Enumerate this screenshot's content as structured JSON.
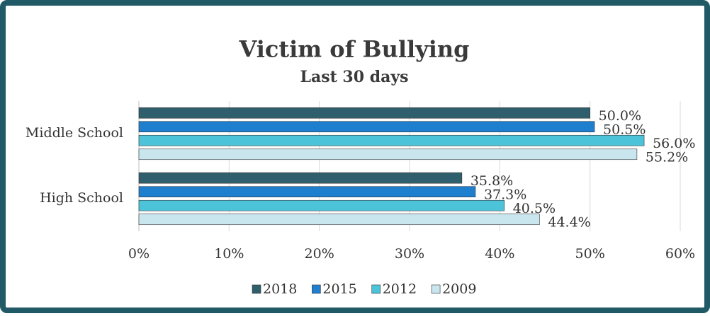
{
  "chart_data": {
    "type": "hbar",
    "title": "Victim of Bullying",
    "subtitle": "Last 30 days",
    "categories": [
      "Middle School",
      "High School"
    ],
    "series": [
      {
        "name": "2018",
        "color": "#2f5f6c",
        "values": [
          50.0,
          35.8
        ],
        "value_labels": [
          "50.0%",
          "35.8%"
        ]
      },
      {
        "name": "2015",
        "color": "#1e7fcf",
        "values": [
          50.5,
          37.3
        ],
        "value_labels": [
          "50.5%",
          "37.3%"
        ]
      },
      {
        "name": "2012",
        "color": "#4cc3d8",
        "values": [
          56.0,
          40.5
        ],
        "value_labels": [
          "56.0%",
          "40.5%"
        ]
      },
      {
        "name": "2009",
        "color": "#c9e5ee",
        "values": [
          55.2,
          44.4
        ],
        "value_labels": [
          "55.2%",
          "44.4%"
        ]
      }
    ],
    "xlim": [
      0,
      60
    ],
    "xticks": [
      {
        "value": 0,
        "label": "0%"
      },
      {
        "value": 10,
        "label": "10%"
      },
      {
        "value": 20,
        "label": "20%"
      },
      {
        "value": 30,
        "label": "30%"
      },
      {
        "value": 40,
        "label": "40%"
      },
      {
        "value": 50,
        "label": "50%"
      },
      {
        "value": 60,
        "label": "60%"
      }
    ],
    "grid": true,
    "legend": "bottom"
  }
}
